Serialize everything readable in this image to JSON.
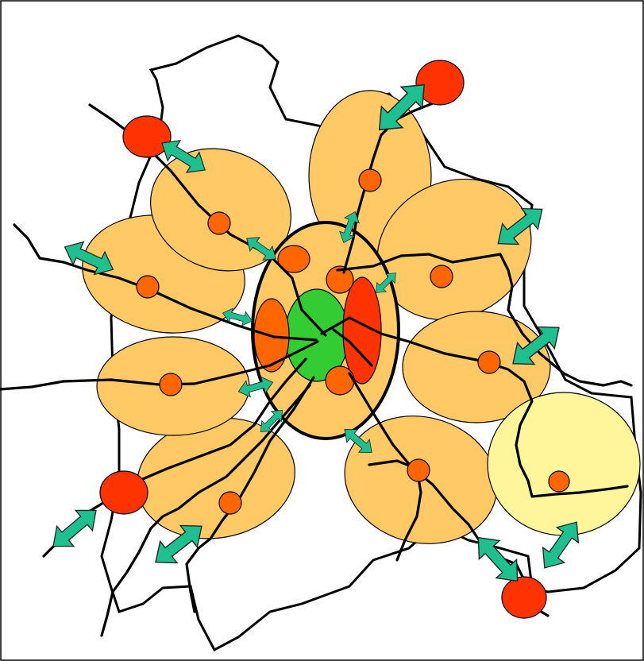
{
  "diagram": {
    "colors": {
      "region_fill": "#FFC966",
      "outer_ring_fill": "#FFF59B",
      "core_fill": "#33CC33",
      "center_ring_fill": "#FFC966",
      "inner_node_orange": "#FF6600",
      "inner_node_red": "#FF3300",
      "node_fill": "#FF6600",
      "external_node_fill": "#FF3300",
      "arrow_fill": "#1FC08F",
      "line_color": "#000000"
    },
    "element_kinds": [
      "satellite-region",
      "core-cluster",
      "external-node",
      "link-arrow",
      "road-network",
      "boundary-outline"
    ]
  }
}
